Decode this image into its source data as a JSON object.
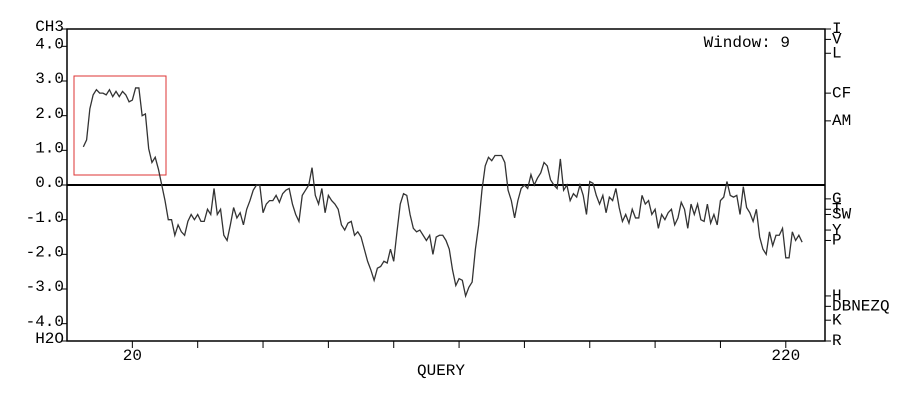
{
  "chart_data": {
    "type": "line",
    "annotation": "Window: 9",
    "x_label": "QUERY",
    "xlim": [
      0,
      232
    ],
    "xticks": [
      20,
      220
    ],
    "x_minor_ticks": [
      40,
      60,
      80,
      100,
      120,
      140,
      160,
      180,
      200
    ],
    "ylim": [
      -4.5,
      4.5
    ],
    "yticks": [
      {
        "value": 4.5,
        "label": "CH3"
      },
      {
        "value": 4,
        "label": "4.0"
      },
      {
        "value": 3,
        "label": "3.0"
      },
      {
        "value": 2,
        "label": "2.0"
      },
      {
        "value": 1,
        "label": "1.0"
      },
      {
        "value": 0,
        "label": "0.0"
      },
      {
        "value": -1,
        "label": "-1.0"
      },
      {
        "value": -2,
        "label": "-2.0"
      },
      {
        "value": -3,
        "label": "-3.0"
      },
      {
        "value": -4,
        "label": "-4.0"
      },
      {
        "value": -4.5,
        "label": "H2O"
      }
    ],
    "y2lim": [
      -4.5,
      4.5
    ],
    "y2ticks": [
      {
        "value": 4.5,
        "label": "I"
      },
      {
        "value": 4.2,
        "label": "V"
      },
      {
        "value": 3.8,
        "label": "L"
      },
      {
        "value": 2.65,
        "label": "CF"
      },
      {
        "value": 1.85,
        "label": "AM"
      },
      {
        "value": -0.4,
        "label": "G"
      },
      {
        "value": -0.7,
        "label": "T"
      },
      {
        "value": -0.85,
        "label": "SW"
      },
      {
        "value": -1.3,
        "label": "Y"
      },
      {
        "value": -1.6,
        "label": "P"
      },
      {
        "value": -3.2,
        "label": "H"
      },
      {
        "value": -3.5,
        "label": "DBNEZQ"
      },
      {
        "value": -3.9,
        "label": "K"
      },
      {
        "value": -4.5,
        "label": "R"
      }
    ],
    "zero_line": true,
    "color": "#333333",
    "x": [
      5,
      6,
      7,
      8,
      9,
      10,
      11,
      12,
      13,
      14,
      15,
      16,
      17,
      18,
      19,
      20,
      21,
      22,
      23,
      24,
      25,
      26,
      27,
      28,
      29,
      30,
      31,
      32,
      33,
      34,
      35,
      36,
      37,
      38,
      39,
      40,
      41,
      42,
      43,
      44,
      45,
      46,
      47,
      48,
      49,
      50,
      51,
      52,
      53,
      54,
      55,
      56,
      57,
      58,
      59,
      60,
      61,
      62,
      63,
      64,
      65,
      66,
      67,
      68,
      69,
      70,
      71,
      72,
      73,
      74,
      75,
      76,
      77,
      78,
      79,
      80,
      81,
      82,
      83,
      84,
      85,
      86,
      87,
      88,
      89,
      90,
      91,
      92,
      93,
      94,
      95,
      96,
      97,
      98,
      99,
      100,
      101,
      102,
      103,
      104,
      105,
      106,
      107,
      108,
      109,
      110,
      111,
      112,
      113,
      114,
      115,
      116,
      117,
      118,
      119,
      120,
      121,
      122,
      123,
      124,
      125,
      126,
      127,
      128,
      129,
      130,
      131,
      132,
      133,
      134,
      135,
      136,
      137,
      138,
      139,
      140,
      141,
      142,
      143,
      144,
      145,
      146,
      147,
      148,
      149,
      150,
      151,
      152,
      153,
      154,
      155,
      156,
      157,
      158,
      159,
      160,
      161,
      162,
      163,
      164,
      165,
      166,
      167,
      168,
      169,
      170,
      171,
      172,
      173,
      174,
      175,
      176,
      177,
      178,
      179,
      180,
      181,
      182,
      183,
      184,
      185,
      186,
      187,
      188,
      189,
      190,
      191,
      192,
      193,
      194,
      195,
      196,
      197,
      198,
      199,
      200,
      201,
      202,
      203,
      204,
      205,
      206,
      207,
      208,
      209,
      210,
      211,
      212,
      213,
      214,
      215,
      216,
      217,
      218,
      219,
      220,
      221,
      222,
      223,
      224,
      225
    ],
    "values": [
      1.1,
      1.3,
      2.2,
      2.6,
      2.75,
      2.65,
      2.65,
      2.6,
      2.75,
      2.55,
      2.7,
      2.55,
      2.7,
      2.6,
      2.4,
      2.45,
      2.8,
      2.8,
      2.0,
      2.05,
      1.05,
      0.65,
      0.8,
      0.45,
      0.0,
      -0.45,
      -1.0,
      -1.0,
      -1.45,
      -1.15,
      -1.35,
      -1.45,
      -1.05,
      -0.85,
      -1.0,
      -0.85,
      -1.05,
      -1.05,
      -0.7,
      -0.85,
      -0.1,
      -0.85,
      -0.7,
      -1.45,
      -1.6,
      -1.15,
      -0.65,
      -0.95,
      -0.8,
      -1.15,
      -0.7,
      -0.45,
      -0.15,
      0.0,
      0.0,
      -0.8,
      -0.55,
      -0.45,
      -0.45,
      -0.3,
      -0.5,
      -0.25,
      -0.15,
      -0.1,
      -0.55,
      -0.85,
      -1.05,
      -0.3,
      -0.15,
      0.0,
      0.5,
      -0.3,
      -0.55,
      -0.1,
      -0.8,
      -0.3,
      -0.45,
      -0.55,
      -0.7,
      -1.15,
      -1.3,
      -1.1,
      -1.05,
      -1.45,
      -1.35,
      -1.5,
      -1.85,
      -2.2,
      -2.45,
      -2.75,
      -2.4,
      -2.35,
      -2.2,
      -2.25,
      -1.85,
      -2.2,
      -1.35,
      -0.55,
      -0.25,
      -0.3,
      -0.85,
      -1.25,
      -1.35,
      -1.3,
      -1.45,
      -1.6,
      -1.45,
      -2.0,
      -1.5,
      -1.45,
      -1.45,
      -1.6,
      -1.85,
      -2.45,
      -2.9,
      -2.7,
      -2.75,
      -3.2,
      -2.95,
      -2.8,
      -1.85,
      -1.15,
      -0.15,
      0.55,
      0.8,
      0.7,
      0.85,
      0.85,
      0.85,
      0.65,
      -0.15,
      -0.45,
      -0.95,
      -0.45,
      -0.1,
      0.0,
      -0.1,
      0.3,
      0.0,
      0.2,
      0.35,
      0.65,
      0.55,
      0.15,
      0.0,
      -0.1,
      0.75,
      -0.15,
      0.0,
      -0.45,
      -0.25,
      -0.35,
      0.0,
      -0.3,
      -0.85,
      0.1,
      0.05,
      -0.3,
      -0.55,
      -0.3,
      -0.8,
      -0.35,
      -0.45,
      -0.1,
      -0.65,
      -1.05,
      -0.85,
      -1.1,
      -0.7,
      -0.95,
      -0.95,
      -0.3,
      -0.55,
      -0.45,
      -0.85,
      -0.7,
      -1.25,
      -0.85,
      -1.0,
      -0.8,
      -0.7,
      -1.15,
      -0.95,
      -0.5,
      -0.7,
      -1.25,
      -0.55,
      -0.85,
      -0.55,
      -1.0,
      -1.05,
      -0.55,
      -1.1,
      -0.85,
      -1.15,
      -0.45,
      -0.35,
      0.1,
      -0.3,
      -0.35,
      -0.3,
      -0.85,
      -0.05,
      -0.65,
      -0.8,
      -1.05,
      -0.7,
      -1.5,
      -1.85,
      -2.0,
      -1.35,
      -1.75,
      -1.45,
      -1.45,
      -1.25,
      -2.1,
      -2.1,
      -1.35,
      -1.6,
      -1.45,
      -1.65
    ]
  }
}
